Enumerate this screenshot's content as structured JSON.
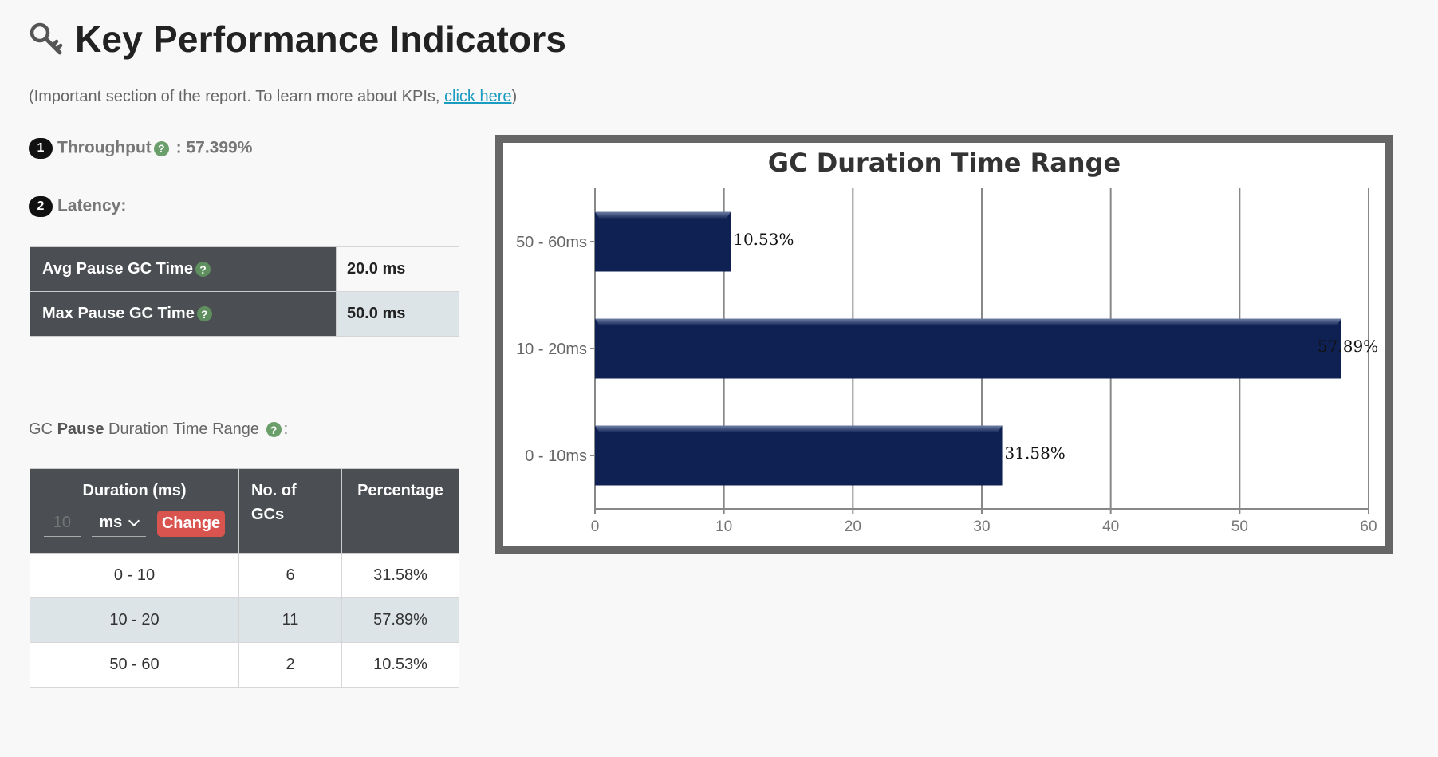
{
  "header": {
    "title": "Key Performance Indicators",
    "icon": "key-icon"
  },
  "intro": {
    "prefix": "(Important section of the report. To learn more about KPIs, ",
    "link": "click here",
    "suffix": ")"
  },
  "throughput": {
    "number": "1",
    "label": "Throughput",
    "help": "?",
    "value": " : 57.399%"
  },
  "latency": {
    "number": "2",
    "label": "Latency:",
    "rows": [
      {
        "label": "Avg Pause GC Time",
        "value": "20.0 ms"
      },
      {
        "label": "Max Pause GC Time",
        "value": "50.0 ms"
      }
    ]
  },
  "range_section": {
    "heading_pre": "GC ",
    "heading_bold": "Pause",
    "heading_post": " Duration Time Range",
    "heading_colon": ":",
    "columns": {
      "duration": "Duration (ms)",
      "gcs_line1": "No. of",
      "gcs_line2": "GCs",
      "percentage": "Percentage"
    },
    "controls": {
      "interval_value": "10",
      "unit": "ms",
      "change_label": "Change"
    },
    "rows": [
      {
        "range": "0 - 10",
        "count": "6",
        "percentage": "31.58%"
      },
      {
        "range": "10 - 20",
        "count": "11",
        "percentage": "57.89%"
      },
      {
        "range": "50 - 60",
        "count": "2",
        "percentage": "10.53%"
      }
    ]
  },
  "chart_data": {
    "type": "bar",
    "orientation": "horizontal",
    "title": "GC Duration Time Range",
    "categories": [
      "50 - 60ms",
      "10 - 20ms",
      "0 - 10ms"
    ],
    "values": [
      10.53,
      57.89,
      31.58
    ],
    "data_labels": [
      "10.53%",
      "57.89%",
      "31.58%"
    ],
    "xlim": [
      0,
      60
    ],
    "x_ticks": [
      0,
      10,
      20,
      30,
      40,
      50,
      60
    ],
    "grid": true,
    "bar_color": "#0f2152"
  }
}
